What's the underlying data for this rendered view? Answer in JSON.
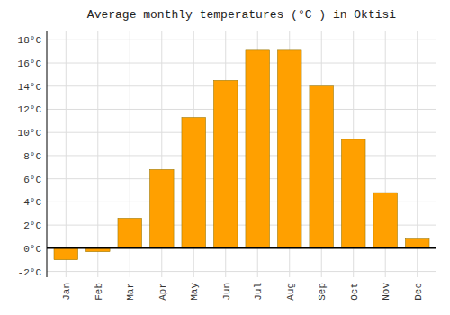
{
  "chart_data": {
    "type": "bar",
    "title": "Average monthly temperatures (°C ) in Oktisi",
    "categories": [
      "Jan",
      "Feb",
      "Mar",
      "Apr",
      "May",
      "Jun",
      "Jul",
      "Aug",
      "Sep",
      "Oct",
      "Nov",
      "Dec"
    ],
    "values": [
      -1.0,
      -0.3,
      2.6,
      6.8,
      11.3,
      14.5,
      17.1,
      17.1,
      14.0,
      9.4,
      4.8,
      0.8
    ],
    "color": "#FFA000",
    "ylim": [
      -2.5,
      18.8
    ],
    "yticks": [
      {
        "value": -2,
        "label": "-2°C"
      },
      {
        "value": 0,
        "label": "0°C"
      },
      {
        "value": 2,
        "label": "2°C"
      },
      {
        "value": 4,
        "label": "4°C"
      },
      {
        "value": 6,
        "label": "6°C"
      },
      {
        "value": 8,
        "label": "8°C"
      },
      {
        "value": 10,
        "label": "10°C"
      },
      {
        "value": 12,
        "label": "12°C"
      },
      {
        "value": 14,
        "label": "14°C"
      },
      {
        "value": 16,
        "label": "16°C"
      },
      {
        "value": 18,
        "label": "18°C"
      }
    ],
    "grid": true
  }
}
